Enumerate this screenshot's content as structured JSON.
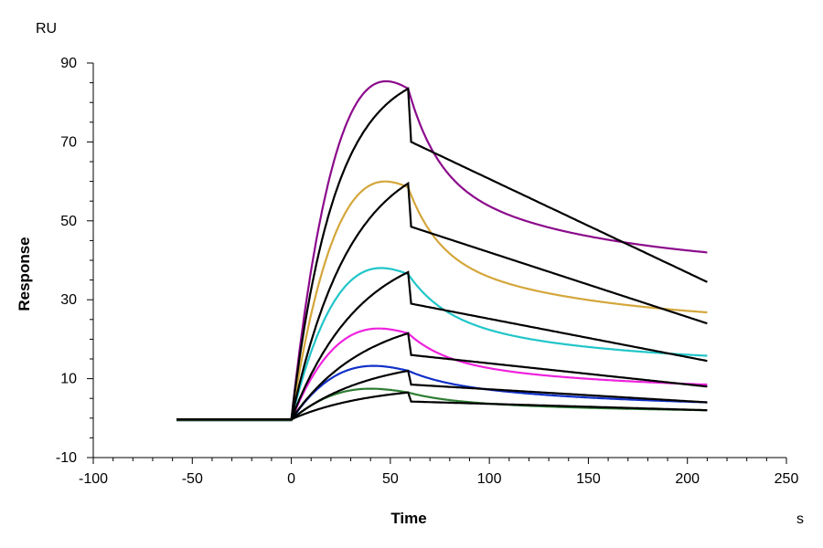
{
  "chart_data": {
    "type": "line",
    "title": "",
    "y_unit": "RU",
    "ylabel": "Response",
    "xlabel": "Time",
    "x_unit": "s",
    "xlim": [
      -100,
      250
    ],
    "ylim": [
      -10,
      90
    ],
    "x_ticks": [
      -100,
      -50,
      0,
      50,
      100,
      150,
      200,
      250
    ],
    "y_ticks": [
      -10,
      10,
      30,
      50,
      70,
      90
    ],
    "grid": false,
    "legend": "none",
    "series": [
      {
        "color": "#8B0A8B",
        "baseline": -0.5,
        "peak": 83.5,
        "bump": 11,
        "fast_amp": 36,
        "fast_tau": 15,
        "slow_amp": 36,
        "slow_tau": 90,
        "final": 42.0
      },
      {
        "color": "#D4A63A",
        "baseline": -0.5,
        "peak": 58.5,
        "bump": 8,
        "fast_amp": 24,
        "fast_tau": 15,
        "slow_amp": 24,
        "slow_tau": 90,
        "final": 26.8
      },
      {
        "color": "#20C5C8",
        "baseline": -0.5,
        "peak": 36.5,
        "bump": 6,
        "fast_amp": 14,
        "fast_tau": 18,
        "slow_amp": 16,
        "slow_tau": 90,
        "final": 15.8
      },
      {
        "color": "#EE22DD",
        "baseline": -0.5,
        "peak": 21.5,
        "bump": 4,
        "fast_amp": 8,
        "fast_tau": 18,
        "slow_amp": 9,
        "slow_tau": 100,
        "final": 8.5
      },
      {
        "color": "#1030C8",
        "baseline": -0.5,
        "peak": 12.0,
        "bump": 3,
        "fast_amp": 3,
        "fast_tau": 20,
        "slow_amp": 6,
        "slow_tau": 110,
        "final": 4.0
      },
      {
        "color": "#2E7D32",
        "baseline": -0.5,
        "peak": 6.5,
        "bump": 2,
        "fast_amp": 2,
        "fast_tau": 20,
        "slow_amp": 3,
        "slow_tau": 110,
        "final": 2.0
      }
    ],
    "fits": [
      {
        "color": "#000000",
        "baseline": -0.3,
        "peak": 83.5,
        "kon_tau": 22,
        "drop": 13.5,
        "end": 34.5
      },
      {
        "color": "#000000",
        "baseline": -0.3,
        "peak": 59.5,
        "kon_tau": 30,
        "drop": 11.0,
        "end": 24.0
      },
      {
        "color": "#000000",
        "baseline": -0.3,
        "peak": 37.0,
        "kon_tau": 35,
        "drop": 8.0,
        "end": 14.5
      },
      {
        "color": "#000000",
        "baseline": -0.3,
        "peak": 21.5,
        "kon_tau": 38,
        "drop": 5.5,
        "end": 8.0
      },
      {
        "color": "#000000",
        "baseline": -0.3,
        "peak": 12.0,
        "kon_tau": 40,
        "drop": 3.5,
        "end": 4.0
      },
      {
        "color": "#000000",
        "baseline": -0.3,
        "peak": 6.5,
        "kon_tau": 40,
        "drop": 2.3,
        "end": 2.0
      }
    ],
    "x_start": -58,
    "inject_start": 0,
    "inject_end": 59,
    "x_end": 210
  }
}
